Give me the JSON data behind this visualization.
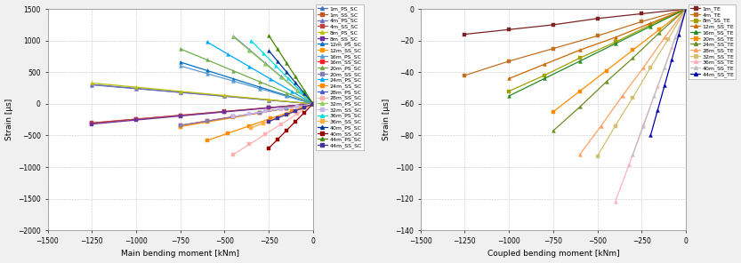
{
  "left_chart": {
    "xlabel": "Main bending moment [kNm]",
    "ylabel": "Strain [μs]",
    "xlim": [
      -1500,
      0
    ],
    "ylim": [
      -2000,
      1500
    ],
    "xticks": [
      -1500,
      -1250,
      -1000,
      -750,
      -500,
      -250,
      0
    ],
    "yticks": [
      -2000,
      -1500,
      -1000,
      -500,
      0,
      500,
      1000,
      1500
    ],
    "series": [
      {
        "label": "1m_PS_SC",
        "color": "#4472C4",
        "marker": "^",
        "moments": [
          -1250,
          -1000,
          -750,
          -500,
          -250,
          0
        ],
        "strains": [
          305,
          245,
          183,
          122,
          61,
          0
        ]
      },
      {
        "label": "1m_SS_SC",
        "color": "#C0562A",
        "marker": "s",
        "moments": [
          -1250,
          -1000,
          -750,
          -500,
          -250,
          0
        ],
        "strains": [
          -305,
          -244,
          -183,
          -122,
          -61,
          0
        ]
      },
      {
        "label": "4m_PS_SC",
        "color": "#7070C0",
        "marker": "^",
        "moments": [
          -1250,
          -1000,
          -750,
          -500,
          -250,
          0
        ],
        "strains": [
          300,
          240,
          180,
          120,
          60,
          0
        ]
      },
      {
        "label": "4m_SS_SC",
        "color": "#C04040",
        "marker": "s",
        "moments": [
          -1250,
          -1000,
          -750,
          -500,
          -250,
          0
        ],
        "strains": [
          -300,
          -240,
          -180,
          -120,
          -60,
          0
        ]
      },
      {
        "label": "8m_PS_SC",
        "color": "#C0C000",
        "marker": "^",
        "moments": [
          -1250,
          -1000,
          -750,
          -500,
          -250,
          0
        ],
        "strains": [
          330,
          264,
          198,
          132,
          66,
          0
        ]
      },
      {
        "label": "8m_SS_SC",
        "color": "#7030A0",
        "marker": "s",
        "moments": [
          -1250,
          -1000,
          -750,
          -500,
          -250,
          0
        ],
        "strains": [
          -320,
          -256,
          -192,
          -128,
          -64,
          0
        ]
      },
      {
        "label": "12m_PS_SC",
        "color": "#0070C0",
        "marker": "^",
        "moments": [
          -750,
          -600,
          -450,
          -300,
          -150,
          0
        ],
        "strains": [
          660,
          528,
          396,
          264,
          132,
          0
        ]
      },
      {
        "label": "12m_SS_SC",
        "color": "#FF9900",
        "marker": "s",
        "moments": [
          -750,
          -600,
          -450,
          -300,
          -150,
          0
        ],
        "strains": [
          -360,
          -288,
          -216,
          -144,
          -72,
          0
        ]
      },
      {
        "label": "16m_PS_SC",
        "color": "#5B9BD5",
        "marker": "^",
        "moments": [
          -750,
          -600,
          -450,
          -300,
          -150,
          0
        ],
        "strains": [
          600,
          480,
          360,
          240,
          120,
          0
        ]
      },
      {
        "label": "16m_SS_SC",
        "color": "#FF2222",
        "marker": "s",
        "moments": [
          -750,
          -600,
          -450,
          -300,
          -150,
          0
        ],
        "strains": [
          -340,
          -272,
          -204,
          -136,
          -68,
          0
        ]
      },
      {
        "label": "20m_PS_SC",
        "color": "#70AD47",
        "marker": "^",
        "moments": [
          -750,
          -600,
          -450,
          -300,
          -150,
          0
        ],
        "strains": [
          870,
          696,
          522,
          348,
          174,
          0
        ]
      },
      {
        "label": "20m_SS_SC",
        "color": "#8080B0",
        "marker": "s",
        "moments": [
          -750,
          -600,
          -450,
          -300,
          -150,
          0
        ],
        "strains": [
          -340,
          -272,
          -204,
          -136,
          -68,
          0
        ]
      },
      {
        "label": "24m_PS_SC",
        "color": "#00AAFF",
        "marker": "^",
        "moments": [
          -600,
          -480,
          -360,
          -240,
          -120,
          0
        ],
        "strains": [
          980,
          784,
          588,
          392,
          196,
          0
        ]
      },
      {
        "label": "24m_SS_SC",
        "color": "#FF8C00",
        "marker": "s",
        "moments": [
          -600,
          -480,
          -360,
          -240,
          -120,
          0
        ],
        "strains": [
          -580,
          -464,
          -348,
          -232,
          -116,
          0
        ]
      },
      {
        "label": "28m_PS_SC",
        "color": "#4455CC",
        "marker": "^",
        "moments": [
          -450,
          -360,
          -270,
          -180,
          -90,
          0
        ],
        "strains": [
          1070,
          856,
          642,
          428,
          214,
          0
        ]
      },
      {
        "label": "28m_SS_SC",
        "color": "#FFB0B0",
        "marker": "s",
        "moments": [
          -450,
          -360,
          -270,
          -180,
          -90,
          0
        ],
        "strains": [
          -800,
          -640,
          -480,
          -320,
          -160,
          0
        ]
      },
      {
        "label": "32m_PS_SC",
        "color": "#90D050",
        "marker": "^",
        "moments": [
          -450,
          -360,
          -270,
          -180,
          -90,
          0
        ],
        "strains": [
          1060,
          848,
          636,
          424,
          212,
          0
        ]
      },
      {
        "label": "32m_SS_SC",
        "color": "#C8B8E8",
        "marker": "s",
        "moments": [
          -450,
          -360,
          -270,
          -180,
          -90,
          0
        ],
        "strains": [
          -200,
          -160,
          -120,
          -80,
          -40,
          0
        ]
      },
      {
        "label": "36m_PS_SC",
        "color": "#00DDDD",
        "marker": "^",
        "moments": [
          -350,
          -280,
          -210,
          -140,
          -70,
          0
        ],
        "strains": [
          1000,
          800,
          600,
          400,
          200,
          0
        ]
      },
      {
        "label": "36m_SS_SC",
        "color": "#FFB040",
        "marker": "s",
        "moments": [
          -350,
          -280,
          -210,
          -140,
          -70,
          0
        ],
        "strains": [
          -380,
          -304,
          -228,
          -152,
          -76,
          0
        ]
      },
      {
        "label": "40m_PS_SC",
        "color": "#003399",
        "marker": "^",
        "moments": [
          -250,
          -200,
          -150,
          -100,
          -50,
          0
        ],
        "strains": [
          840,
          672,
          504,
          336,
          168,
          0
        ]
      },
      {
        "label": "40m_SS_SC",
        "color": "#990000",
        "marker": "s",
        "moments": [
          -250,
          -200,
          -150,
          -100,
          -50,
          0
        ],
        "strains": [
          -700,
          -560,
          -420,
          -280,
          -140,
          0
        ]
      },
      {
        "label": "44m_PS_SC",
        "color": "#448800",
        "marker": "^",
        "moments": [
          -250,
          -200,
          -150,
          -100,
          -50,
          0
        ],
        "strains": [
          1080,
          864,
          648,
          432,
          216,
          0
        ]
      },
      {
        "label": "44m_SS_SC",
        "color": "#443399",
        "marker": "s",
        "moments": [
          -250,
          -200,
          -150,
          -100,
          -50,
          0
        ],
        "strains": [
          -280,
          -224,
          -168,
          -112,
          -56,
          0
        ]
      }
    ]
  },
  "right_chart": {
    "xlabel": "Coupled bending moment [kNm]",
    "ylabel": "Strain [μs]",
    "xlim": [
      -1500,
      0
    ],
    "ylim": [
      -140,
      0
    ],
    "xticks": [
      -1500,
      -1250,
      -1000,
      -750,
      -500,
      -250,
      0
    ],
    "yticks": [
      -140,
      -120,
      -100,
      -80,
      -60,
      -40,
      -20,
      0
    ],
    "series": [
      {
        "label": "1m_TE",
        "color": "#7B2222",
        "marker": "s",
        "moments": [
          -1250,
          -1000,
          -750,
          -500,
          -250,
          0
        ],
        "strains": [
          -16,
          -13,
          -10,
          -6,
          -3,
          0
        ]
      },
      {
        "label": "4m_TE",
        "color": "#C07020",
        "marker": "s",
        "moments": [
          -1250,
          -1000,
          -750,
          -500,
          -250,
          0
        ],
        "strains": [
          -42,
          -33,
          -25,
          -17,
          -8,
          0
        ]
      },
      {
        "label": "8m_SS_TE",
        "color": "#A0A000",
        "marker": "s",
        "moments": [
          -1000,
          -800,
          -600,
          -400,
          -200,
          0
        ],
        "strains": [
          -52,
          -42,
          -31,
          -21,
          -10,
          0
        ]
      },
      {
        "label": "12m_SS_TE",
        "color": "#CC6600",
        "marker": "^",
        "moments": [
          -1000,
          -800,
          -600,
          -400,
          -200,
          0
        ],
        "strains": [
          -44,
          -35,
          -26,
          -18,
          -9,
          0
        ]
      },
      {
        "label": "16m_SS_TE",
        "color": "#228B22",
        "marker": "^",
        "moments": [
          -1000,
          -800,
          -600,
          -400,
          -200,
          0
        ],
        "strains": [
          -55,
          -44,
          -33,
          -22,
          -11,
          0
        ]
      },
      {
        "label": "20m_SS_TE",
        "color": "#FF8C00",
        "marker": "s",
        "moments": [
          -750,
          -600,
          -450,
          -300,
          -150,
          0
        ],
        "strains": [
          -65,
          -52,
          -39,
          -26,
          -13,
          0
        ]
      },
      {
        "label": "24m_SS_TE",
        "color": "#6B8E23",
        "marker": "^",
        "moments": [
          -750,
          -600,
          -450,
          -300,
          -150,
          0
        ],
        "strains": [
          -77,
          -62,
          -46,
          -31,
          -15,
          0
        ]
      },
      {
        "label": "28m_SS_TE",
        "color": "#FFA060",
        "marker": "^",
        "moments": [
          -600,
          -480,
          -360,
          -240,
          -120,
          0
        ],
        "strains": [
          -92,
          -74,
          -55,
          -37,
          -18,
          0
        ]
      },
      {
        "label": "32m_SS_TE",
        "color": "#D0C070",
        "marker": "s",
        "moments": [
          -500,
          -400,
          -300,
          -200,
          -100,
          0
        ],
        "strains": [
          -93,
          -74,
          -56,
          -37,
          -19,
          0
        ]
      },
      {
        "label": "36m_SS_TE",
        "color": "#FFB0C0",
        "marker": "^",
        "moments": [
          -400,
          -320,
          -240,
          -160,
          -80,
          0
        ],
        "strains": [
          -122,
          -98,
          -73,
          -49,
          -24,
          0
        ]
      },
      {
        "label": "40m_SS_TE",
        "color": "#C0C0C0",
        "marker": "^",
        "moments": [
          -300,
          -240,
          -180,
          -120,
          -60,
          0
        ],
        "strains": [
          -92,
          -74,
          -55,
          -37,
          -18,
          0
        ]
      },
      {
        "label": "44m_SS_TE",
        "color": "#0000AA",
        "marker": "^",
        "moments": [
          -200,
          -160,
          -120,
          -80,
          -40,
          0
        ],
        "strains": [
          -80,
          -64,
          -48,
          -32,
          -16,
          0
        ]
      }
    ]
  },
  "bg_color": "#F0F0F0",
  "plot_bg": "#FFFFFF",
  "grid_color": "#C8C8C8",
  "legend_fontsize": 4.5,
  "tick_fontsize": 5.5,
  "label_fontsize": 6.5,
  "linewidth": 0.9,
  "markersize": 2.8
}
